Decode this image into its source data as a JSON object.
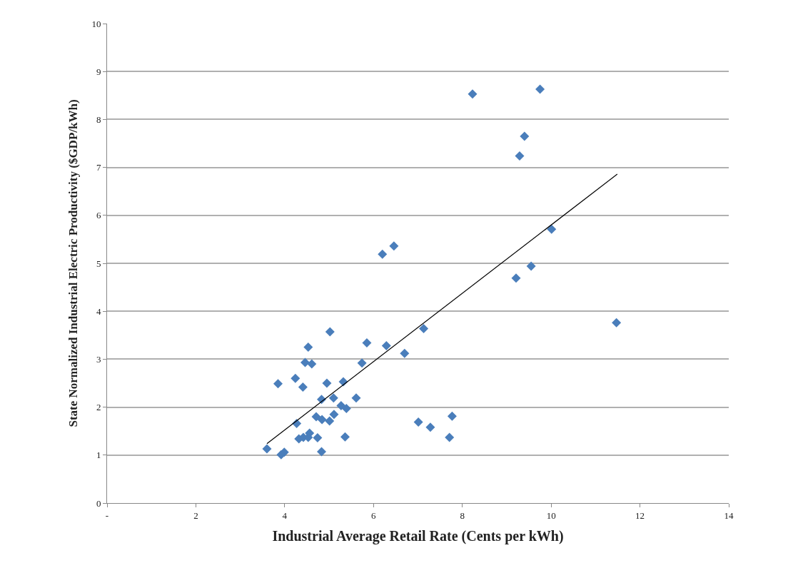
{
  "chart_data": {
    "type": "scatter",
    "xlabel": "Industrial Average Retail Rate (Cents per kWh)",
    "ylabel": "State Normalized Industrial Electric Productivity ($GDP/kWh)",
    "xlim": [
      0,
      14
    ],
    "xticks": [
      {
        "value": 0,
        "label": "-"
      },
      2,
      4,
      6,
      8,
      10,
      12,
      14
    ],
    "ylim": [
      0,
      10
    ],
    "yticks": [
      0,
      1,
      2,
      3,
      4,
      5,
      6,
      7,
      8,
      9,
      10
    ],
    "grid": "y",
    "marker": "diamond",
    "series": [
      {
        "color": "#4a7ebb",
        "x": [
          3.6,
          3.92,
          3.99,
          3.85,
          4.24,
          4.41,
          4.53,
          4.46,
          4.61,
          5.02,
          4.27,
          4.32,
          4.42,
          4.53,
          4.56,
          4.74,
          4.83,
          4.71,
          4.84,
          4.83,
          4.95,
          5.01,
          5.11,
          5.1,
          5.27,
          5.39,
          5.32,
          5.36,
          5.61,
          5.74,
          5.85,
          6.29,
          6.7,
          7.13,
          7.01,
          7.28,
          7.77,
          7.71,
          8.23,
          9.75,
          9.4,
          9.29,
          10.01,
          9.55,
          9.21,
          6.2,
          6.46,
          11.47
        ],
        "values": [
          1.13,
          1.01,
          1.06,
          2.49,
          2.6,
          2.42,
          3.25,
          2.93,
          2.9,
          3.57,
          1.66,
          1.34,
          1.37,
          1.37,
          1.46,
          1.36,
          1.07,
          1.8,
          1.74,
          2.16,
          2.5,
          1.71,
          1.85,
          2.19,
          2.03,
          1.97,
          2.53,
          1.38,
          2.19,
          2.92,
          3.34,
          3.28,
          3.12,
          3.64,
          1.69,
          1.58,
          1.81,
          1.37,
          8.53,
          8.63,
          7.65,
          7.24,
          5.71,
          4.94,
          4.69,
          5.19,
          5.36,
          3.76
        ]
      },
      {
        "type": "line",
        "color": "#000000",
        "line_style": "solid",
        "marker": "none",
        "x": [
          3.6,
          11.49
        ],
        "values": [
          1.24,
          6.86
        ]
      }
    ]
  }
}
